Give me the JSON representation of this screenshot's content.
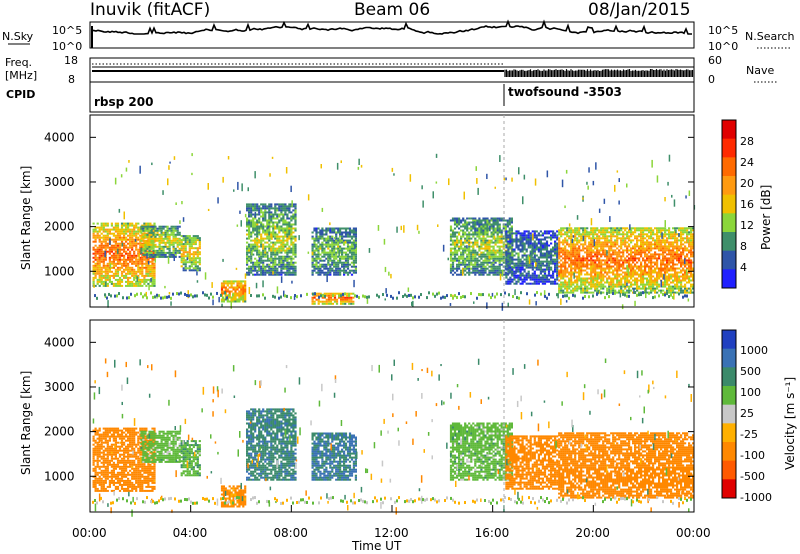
{
  "header": {
    "station": "Inuvik (fitACF)",
    "beam": "Beam 06",
    "date": "08/Jan/2015"
  },
  "noise_panel": {
    "left_label": "N.Sky",
    "right_label": "N.Search",
    "left_ticks": [
      "10^5",
      "10^0"
    ],
    "right_ticks": [
      "10^5",
      "10^0"
    ]
  },
  "freq_panel": {
    "left_label_1": "Freq.",
    "left_label_2": "[MHz]",
    "right_label": "Nave",
    "left_ticks": [
      "18",
      "8"
    ],
    "right_ticks": [
      "60",
      "0"
    ]
  },
  "cpid_panel": {
    "label": "CPID",
    "programs": [
      {
        "name": "rbsp 200",
        "start_hour": 0
      },
      {
        "name": "twofsound -3503",
        "start_hour": 16.5
      }
    ]
  },
  "colors": {
    "power_scale": [
      "#2020ff",
      "#2f55a8",
      "#3f8f6a",
      "#8bd63a",
      "#f0c000",
      "#ff9a10",
      "#ff6a00",
      "#ff2a00",
      "#e00000"
    ],
    "velocity_scale": [
      "#2040c0",
      "#3a72b5",
      "#3b8a6a",
      "#5fb93a",
      "#c8c8c8",
      "#ffb000",
      "#ff8800",
      "#ff5a00",
      "#e00000"
    ]
  },
  "chart_data": [
    {
      "type": "heatmap",
      "name": "power",
      "ylabel": "Slant Range [km]",
      "yticks": [
        "1000",
        "2000",
        "3000",
        "4000"
      ],
      "ylim": [
        200,
        4500
      ],
      "xlim": [
        0,
        24
      ],
      "colorbar_label": "Power [dB]",
      "colorbar_ticks": [
        "28",
        "24",
        "20",
        "16",
        "12",
        "8",
        "4"
      ],
      "colorbar_range": [
        0,
        32
      ],
      "regions": [
        {
          "t0": 0.1,
          "t1": 2.6,
          "r0": 650,
          "r1": 2100,
          "core": 25
        },
        {
          "t0": 2.0,
          "t1": 3.6,
          "r0": 1300,
          "r1": 2000,
          "core": 16
        },
        {
          "t0": 3.6,
          "t1": 4.4,
          "r0": 1000,
          "r1": 1800,
          "core": 18
        },
        {
          "t0": 5.2,
          "t1": 6.2,
          "r0": 300,
          "r1": 800,
          "core": 24
        },
        {
          "t0": 6.2,
          "t1": 8.2,
          "r0": 900,
          "r1": 2500,
          "core": 14
        },
        {
          "t0": 8.8,
          "t1": 10.6,
          "r0": 900,
          "r1": 2000,
          "core": 12
        },
        {
          "t0": 8.8,
          "t1": 10.5,
          "r0": 250,
          "r1": 500,
          "core": 26
        },
        {
          "t0": 14.3,
          "t1": 16.8,
          "r0": 900,
          "r1": 2200,
          "core": 14
        },
        {
          "t0": 16.5,
          "t1": 18.6,
          "r0": 700,
          "r1": 1900,
          "core": 8
        },
        {
          "t0": 18.6,
          "t1": 24.0,
          "r0": 500,
          "r1": 2000,
          "core": 24
        }
      ]
    },
    {
      "type": "heatmap",
      "name": "velocity",
      "ylabel": "Slant Range [km]",
      "yticks": [
        "1000",
        "2000",
        "3000",
        "4000"
      ],
      "ylim": [
        200,
        4500
      ],
      "xlim": [
        0,
        24
      ],
      "xlabel": "Time UT",
      "xticks": [
        "00:00",
        "04:00",
        "08:00",
        "12:00",
        "16:00",
        "20:00",
        "00:00"
      ],
      "colorbar_label": "Velocity [m s⁻¹]",
      "colorbar_ticks": [
        "1000",
        "500",
        "100",
        "25",
        "-25",
        "-100",
        "-500",
        "-1000"
      ],
      "regions": [
        {
          "t0": 0.1,
          "t1": 2.6,
          "r0": 650,
          "r1": 2100,
          "v": -200
        },
        {
          "t0": 2.0,
          "t1": 3.6,
          "r0": 1300,
          "r1": 2000,
          "v": 50
        },
        {
          "t0": 3.6,
          "t1": 4.4,
          "r0": 1000,
          "r1": 1800,
          "v": 80
        },
        {
          "t0": 5.2,
          "t1": 6.2,
          "r0": 300,
          "r1": 800,
          "v": -150
        },
        {
          "t0": 6.2,
          "t1": 8.2,
          "r0": 900,
          "r1": 2500,
          "v": 400
        },
        {
          "t0": 8.8,
          "t1": 10.6,
          "r0": 900,
          "r1": 2000,
          "v": 500
        },
        {
          "t0": 14.3,
          "t1": 16.8,
          "r0": 900,
          "r1": 2200,
          "v": 60
        },
        {
          "t0": 16.5,
          "t1": 18.6,
          "r0": 700,
          "r1": 1900,
          "v": -200
        },
        {
          "t0": 18.6,
          "t1": 24.0,
          "r0": 500,
          "r1": 2000,
          "v": -220
        }
      ]
    }
  ]
}
